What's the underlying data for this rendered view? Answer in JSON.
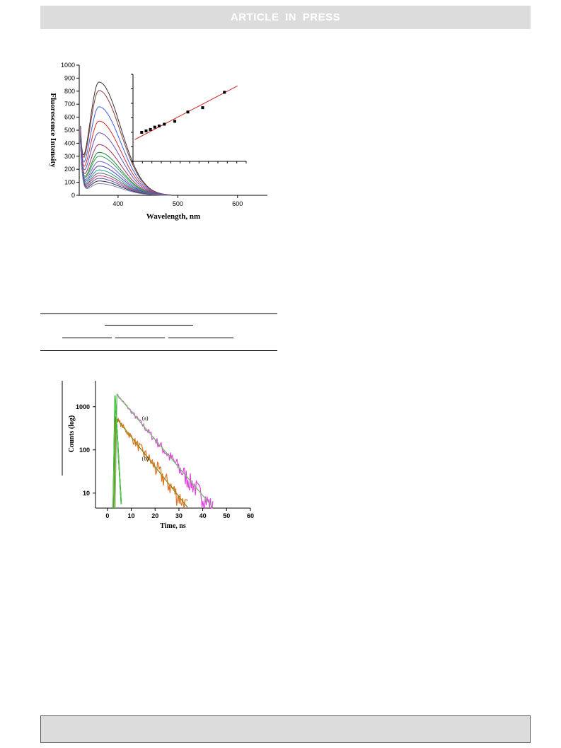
{
  "header": {
    "banner_text": "ARTICLE  IN  PRESS"
  },
  "colors": {
    "banner_bg": "#dcdcdc",
    "fit_line": "#cc2222",
    "decay_a": "#e040e0",
    "decay_b": "#e07020",
    "irf": "#000000"
  },
  "chart_data": [
    {
      "type": "line",
      "xlabel": "Wavelength, nm",
      "ylabel": "Fluorescence Intensity",
      "xlim": [
        335,
        650
      ],
      "ylim": [
        0,
        1000
      ],
      "xticks": [
        400,
        500,
        600
      ],
      "yticks": [
        0,
        100,
        200,
        300,
        400,
        500,
        600,
        700,
        800,
        900,
        1000
      ],
      "peak_wavelength": 368,
      "series": [
        {
          "peak": 870,
          "color": "#333333"
        },
        {
          "peak": 805,
          "color": "#8b3a3a"
        },
        {
          "peak": 680,
          "color": "#3a5fe0"
        },
        {
          "peak": 570,
          "color": "#d03030"
        },
        {
          "peak": 480,
          "color": "#6050c0"
        },
        {
          "peak": 390,
          "color": "#a03060"
        },
        {
          "peak": 330,
          "color": "#208040"
        },
        {
          "peak": 300,
          "color": "#30a050"
        },
        {
          "peak": 260,
          "color": "#7060d0"
        },
        {
          "peak": 225,
          "color": "#4040a0"
        },
        {
          "peak": 195,
          "color": "#20a0a0"
        },
        {
          "peak": 170,
          "color": "#606060"
        },
        {
          "peak": 150,
          "color": "#c04080"
        },
        {
          "peak": 130,
          "color": "#5050b0"
        },
        {
          "peak": 110,
          "color": "#303030"
        },
        {
          "peak": 90,
          "color": "#8080c0"
        }
      ],
      "inset": {
        "type": "scatter",
        "points": [
          [
            1.0,
            1.0
          ],
          [
            1.5,
            1.05
          ],
          [
            2.0,
            1.1
          ],
          [
            2.5,
            1.18
          ],
          [
            3.0,
            1.22
          ],
          [
            3.6,
            1.28
          ],
          [
            4.8,
            1.38
          ],
          [
            6.3,
            1.7
          ],
          [
            8.0,
            1.85
          ],
          [
            10.5,
            2.38
          ]
        ],
        "fit": [
          [
            0.2,
            0.75
          ],
          [
            12.0,
            2.6
          ]
        ],
        "xlim": [
          0,
          13
        ],
        "ylim": [
          0,
          3
        ]
      }
    },
    {
      "type": "line",
      "xlabel": "Time, ns",
      "ylabel": "Counts (log)",
      "xlim": [
        -5,
        60
      ],
      "yscale": "log",
      "ylim": [
        4.5,
        4000
      ],
      "xticks": [
        0,
        10,
        20,
        30,
        40,
        50,
        60
      ],
      "yticks": [
        10,
        100,
        1000
      ],
      "series": [
        {
          "name": "(a)",
          "peak_time": 4,
          "peak_counts": 1900,
          "tau": 6.7,
          "color": "#e040e0",
          "fit_color": "#7cc070"
        },
        {
          "name": "(b)",
          "peak_time": 3.5,
          "peak_counts": 560,
          "tau": 6.3,
          "color": "#e07020",
          "fit_color": "#909020"
        },
        {
          "name": "",
          "peak_time": 3.2,
          "peak_counts": 1800,
          "tau": 0.45,
          "color": "#000000",
          "fit_color": "#40e040"
        }
      ],
      "annotations": [
        "(a)",
        "(b)"
      ]
    }
  ]
}
